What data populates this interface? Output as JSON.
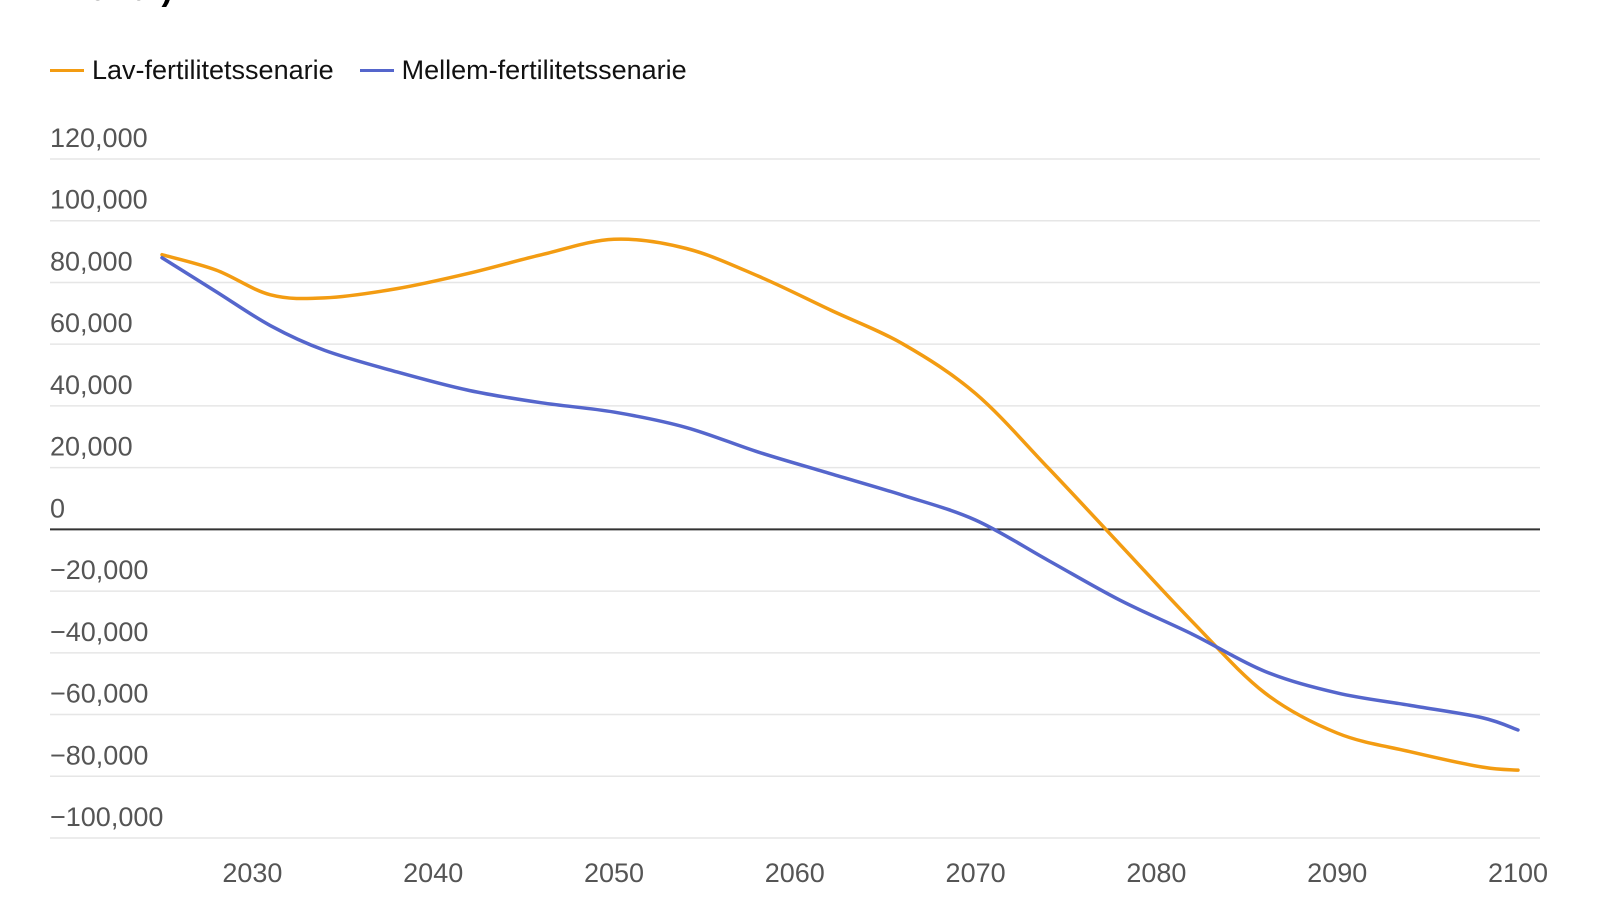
{
  "chart_data": {
    "type": "line",
    "title": "Kroner)",
    "xlabel": "",
    "ylabel": "",
    "xlim": [
      2023.5,
      2101
    ],
    "ylim": [
      -100000,
      120000
    ],
    "x_ticks": [
      "2030",
      "2040",
      "2050",
      "2060",
      "2070",
      "2080",
      "2090",
      "2100"
    ],
    "x_tick_values": [
      2030,
      2040,
      2050,
      2060,
      2070,
      2080,
      2090,
      2100
    ],
    "y_ticks": [
      "120,000",
      "100,000",
      "80,000",
      "60,000",
      "40,000",
      "20,000",
      "0",
      "−20,000",
      "−40,000",
      "−60,000",
      "−80,000",
      "−100,000"
    ],
    "y_tick_values": [
      120000,
      100000,
      80000,
      60000,
      40000,
      20000,
      0,
      -20000,
      -40000,
      -60000,
      -80000,
      -100000
    ],
    "grid": true,
    "legend_position": "top-left",
    "series": [
      {
        "name": "Lav-fertilitetssenarie",
        "color": "#F39C12",
        "x": [
          2025,
          2028,
          2031,
          2034,
          2038,
          2042,
          2046,
          2050,
          2054,
          2058,
          2062,
          2066,
          2070,
          2074,
          2078,
          2082,
          2086,
          2090,
          2094,
          2098,
          2100
        ],
        "y": [
          89000,
          84000,
          76000,
          75000,
          78000,
          83000,
          89000,
          94000,
          91000,
          82000,
          71000,
          60000,
          44000,
          20000,
          -5000,
          -30000,
          -53000,
          -66000,
          -72000,
          -77000,
          -78000
        ]
      },
      {
        "name": "Mellem-fertilitetssenarie",
        "color": "#5566CC",
        "x": [
          2025,
          2028,
          2031,
          2034,
          2038,
          2042,
          2046,
          2050,
          2054,
          2058,
          2062,
          2066,
          2070,
          2074,
          2078,
          2082,
          2086,
          2090,
          2094,
          2098,
          2100
        ],
        "y": [
          88000,
          77000,
          66000,
          58000,
          51000,
          45000,
          41000,
          38000,
          33000,
          25000,
          18000,
          11000,
          3000,
          -10000,
          -23000,
          -34000,
          -46000,
          -53000,
          -57000,
          -61000,
          -65000
        ]
      }
    ]
  },
  "colors": {
    "gridline": "#E6E6E6",
    "zero_line": "#333333",
    "tick_text": "#555555"
  }
}
